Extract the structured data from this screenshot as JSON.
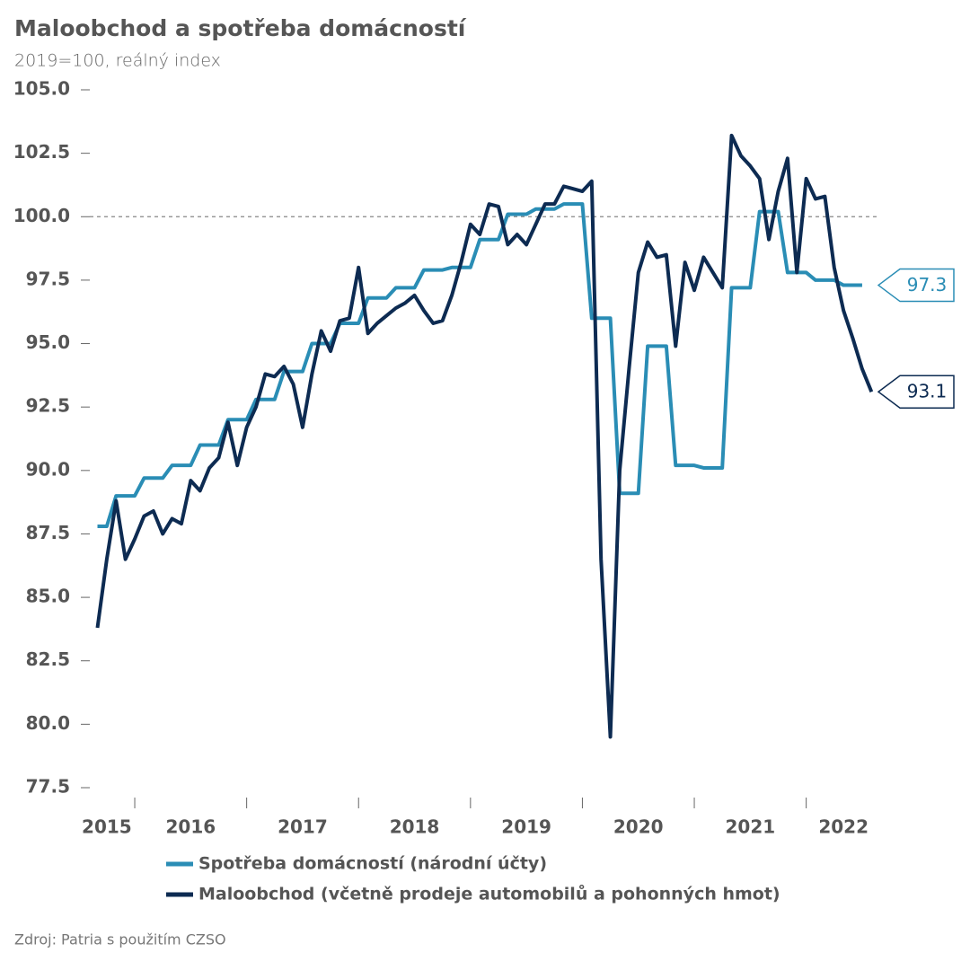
{
  "chart_data": {
    "type": "line",
    "title": "Maloobchod a spotřeba domácností",
    "subtitle": "2019=100, reálný index",
    "source": "Zdroj: Patria s použitím CZSO",
    "categories": [
      null,
      "2015",
      null,
      null,
      null,
      null,
      null,
      null,
      null,
      null,
      "2016",
      null,
      null,
      null,
      null,
      null,
      null,
      null,
      null,
      null,
      null,
      null,
      "2017",
      null,
      null,
      null,
      null,
      null,
      null,
      null,
      null,
      null,
      null,
      null,
      "2018",
      null,
      null,
      null,
      null,
      null,
      null,
      null,
      null,
      null,
      null,
      null,
      "2019",
      null,
      null,
      null,
      null,
      null,
      null,
      null,
      null,
      null,
      null,
      null,
      "2020",
      null,
      null,
      null,
      null,
      null,
      null,
      null,
      null,
      null,
      null,
      null,
      "2021",
      null,
      null,
      null,
      null,
      null,
      null,
      null,
      null,
      null,
      "2022",
      null,
      null,
      null
    ],
    "series": [
      {
        "name": "Spotřeba domácností (národní účty)",
        "color": "#2a8db5",
        "values": [
          87.8,
          87.8,
          89.0,
          89.0,
          89.0,
          89.7,
          89.7,
          89.7,
          90.2,
          90.2,
          90.2,
          91.0,
          91.0,
          91.0,
          92.0,
          92.0,
          92.0,
          92.8,
          92.8,
          92.8,
          93.9,
          93.9,
          93.9,
          95.0,
          95.0,
          95.0,
          95.8,
          95.8,
          95.8,
          96.8,
          96.8,
          96.8,
          97.2,
          97.2,
          97.2,
          97.9,
          97.9,
          97.9,
          98.0,
          98.0,
          98.0,
          99.1,
          99.1,
          99.1,
          100.1,
          100.1,
          100.1,
          100.3,
          100.3,
          100.3,
          100.5,
          100.5,
          100.5,
          96.0,
          96.0,
          96.0,
          89.1,
          89.1,
          89.1,
          94.9,
          94.9,
          94.9,
          90.2,
          90.2,
          90.2,
          90.1,
          90.1,
          90.1,
          97.2,
          97.2,
          97.2,
          100.2,
          100.2,
          100.2,
          97.8,
          97.8,
          97.8,
          97.5,
          97.5,
          97.5,
          97.3,
          97.3,
          97.3,
          null
        ]
      },
      {
        "name": "Maloobchod (včetně prodeje automobilů a pohonných hmot)",
        "color": "#0d2b52",
        "values": [
          83.8,
          86.5,
          88.8,
          86.5,
          87.3,
          88.2,
          88.4,
          87.5,
          88.1,
          87.9,
          89.6,
          89.2,
          90.1,
          90.5,
          91.9,
          90.2,
          91.7,
          92.5,
          93.8,
          93.7,
          94.1,
          93.4,
          91.7,
          93.8,
          95.5,
          94.7,
          95.9,
          96.0,
          98.0,
          95.4,
          95.8,
          96.1,
          96.4,
          96.6,
          96.9,
          96.3,
          95.8,
          95.9,
          96.9,
          98.2,
          99.7,
          99.3,
          100.5,
          100.4,
          98.9,
          99.3,
          98.9,
          99.7,
          100.5,
          100.5,
          101.2,
          101.1,
          101.0,
          101.4,
          86.5,
          79.5,
          90.0,
          94.0,
          97.8,
          99.0,
          98.4,
          98.5,
          94.9,
          98.2,
          97.1,
          98.4,
          97.8,
          97.2,
          103.2,
          102.4,
          102.0,
          101.5,
          99.1,
          101.0,
          102.3,
          97.8,
          101.5,
          100.7,
          100.8,
          98.0,
          96.3,
          95.2,
          94.0,
          93.1
        ]
      }
    ],
    "ylim": [
      77.5,
      105
    ],
    "yticks": [
      77.5,
      {
        "value": 80,
        "label": "80.0"
      },
      82.5,
      {
        "value": 85,
        "label": "85.0"
      },
      87.5,
      {
        "value": 90,
        "label": "90.0"
      },
      92.5,
      {
        "value": 95,
        "label": "95.0"
      },
      97.5,
      {
        "value": 100,
        "label": "100.0"
      },
      102.5,
      {
        "value": 105,
        "label": "105.0"
      }
    ],
    "hline": 100
  }
}
